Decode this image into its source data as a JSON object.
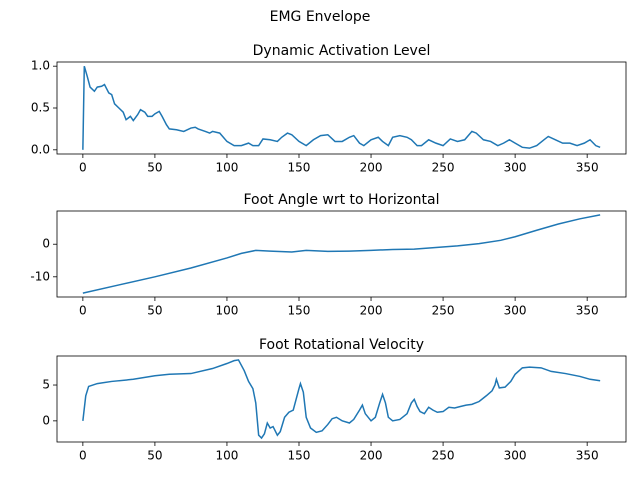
{
  "suptitle": "EMG Envelope",
  "chart_data": [
    {
      "type": "line",
      "title": "Dynamic Activation Level",
      "color": "#1f77b4",
      "x": [
        0,
        1,
        3,
        5,
        8,
        10,
        13,
        15,
        18,
        20,
        22,
        25,
        28,
        30,
        33,
        35,
        38,
        40,
        43,
        45,
        48,
        50,
        53,
        55,
        58,
        60,
        65,
        70,
        75,
        78,
        80,
        85,
        88,
        90,
        95,
        100,
        105,
        110,
        115,
        118,
        122,
        125,
        130,
        135,
        138,
        142,
        145,
        150,
        155,
        160,
        165,
        170,
        175,
        180,
        185,
        188,
        192,
        195,
        200,
        205,
        208,
        212,
        215,
        220,
        225,
        228,
        232,
        235,
        240,
        245,
        250,
        255,
        260,
        265,
        270,
        273,
        278,
        283,
        288,
        292,
        296,
        300,
        305,
        310,
        315,
        320,
        323,
        328,
        333,
        338,
        343,
        348,
        352,
        356,
        359
      ],
      "values": [
        0,
        1.0,
        0.88,
        0.75,
        0.7,
        0.75,
        0.76,
        0.78,
        0.68,
        0.66,
        0.55,
        0.5,
        0.45,
        0.36,
        0.4,
        0.35,
        0.42,
        0.48,
        0.45,
        0.4,
        0.4,
        0.43,
        0.46,
        0.4,
        0.3,
        0.25,
        0.24,
        0.22,
        0.26,
        0.27,
        0.25,
        0.22,
        0.2,
        0.22,
        0.2,
        0.1,
        0.05,
        0.05,
        0.08,
        0.05,
        0.05,
        0.13,
        0.12,
        0.1,
        0.15,
        0.2,
        0.18,
        0.1,
        0.05,
        0.12,
        0.17,
        0.18,
        0.1,
        0.1,
        0.15,
        0.17,
        0.08,
        0.05,
        0.12,
        0.15,
        0.1,
        0.05,
        0.15,
        0.17,
        0.15,
        0.12,
        0.05,
        0.05,
        0.12,
        0.08,
        0.05,
        0.13,
        0.1,
        0.12,
        0.22,
        0.2,
        0.12,
        0.1,
        0.05,
        0.08,
        0.12,
        0.08,
        0.03,
        0.02,
        0.05,
        0.12,
        0.16,
        0.12,
        0.08,
        0.08,
        0.05,
        0.08,
        0.12,
        0.05,
        0.03
      ],
      "xlim": [
        -17.95,
        376.95
      ],
      "xticks": [
        0,
        50,
        100,
        150,
        200,
        250,
        300,
        350
      ],
      "ylim": [
        -0.05,
        1.05
      ],
      "yticks": [
        {
          "value": 0,
          "label": "0.0"
        },
        {
          "value": 0.5,
          "label": "0.5"
        },
        {
          "value": 1,
          "label": "1.0"
        }
      ]
    },
    {
      "type": "line",
      "title": "Foot Angle wrt to Horizontal",
      "color": "#1f77b4",
      "x": [
        0,
        25,
        50,
        75,
        100,
        110,
        120,
        130,
        145,
        155,
        170,
        185,
        200,
        215,
        230,
        245,
        260,
        275,
        290,
        300,
        315,
        330,
        345,
        359
      ],
      "values": [
        -15,
        -12.5,
        -10,
        -7.3,
        -4.2,
        -2.8,
        -1.9,
        -2.1,
        -2.4,
        -1.9,
        -2.2,
        -2.1,
        -1.9,
        -1.6,
        -1.5,
        -1.0,
        -0.5,
        0.2,
        1.2,
        2.3,
        4.3,
        6.2,
        7.8,
        9.0
      ],
      "xlim": [
        -17.95,
        376.95
      ],
      "xticks": [
        0,
        50,
        100,
        150,
        200,
        250,
        300,
        350
      ],
      "ylim": [
        -16.2,
        10.2
      ],
      "yticks": [
        -10,
        0
      ]
    },
    {
      "type": "line",
      "title": "Foot Rotational Velocity",
      "color": "#1f77b4",
      "x": [
        0,
        2,
        4,
        10,
        20,
        35,
        50,
        60,
        75,
        90,
        100,
        105,
        108,
        112,
        115,
        118,
        120,
        122,
        124,
        126,
        128,
        130,
        132,
        135,
        137,
        140,
        143,
        146,
        148,
        150,
        151,
        153,
        155,
        158,
        162,
        166,
        170,
        173,
        176,
        180,
        185,
        188,
        192,
        194,
        196,
        200,
        203,
        206,
        208,
        210,
        212,
        215,
        220,
        225,
        228,
        230,
        232,
        234,
        237,
        240,
        243,
        246,
        250,
        254,
        258,
        262,
        266,
        270,
        275,
        280,
        284,
        286,
        287,
        289,
        293,
        297,
        300,
        305,
        310,
        318,
        325,
        335,
        345,
        352,
        359
      ],
      "values": [
        0,
        3.5,
        4.8,
        5.2,
        5.5,
        5.8,
        6.3,
        6.5,
        6.6,
        7.3,
        8.0,
        8.4,
        8.5,
        7.0,
        5.5,
        4.5,
        2.5,
        -2.0,
        -2.4,
        -1.8,
        -0.3,
        -1.0,
        -0.8,
        -2.0,
        -1.5,
        0.5,
        1.2,
        1.5,
        3.0,
        4.5,
        5.2,
        4.0,
        0.5,
        -1.0,
        -1.6,
        -1.4,
        -0.5,
        0.3,
        0.5,
        0.0,
        -0.3,
        0.2,
        1.5,
        2.2,
        1.0,
        0.0,
        0.5,
        2.5,
        3.7,
        2.5,
        0.5,
        0.0,
        0.2,
        1.0,
        2.5,
        3.0,
        2.0,
        1.3,
        1.0,
        1.9,
        1.5,
        1.2,
        1.3,
        1.9,
        1.8,
        2.0,
        2.2,
        2.3,
        2.7,
        3.5,
        4.2,
        5.0,
        5.8,
        4.6,
        4.7,
        5.5,
        6.5,
        7.4,
        7.5,
        7.4,
        6.9,
        6.6,
        6.2,
        5.8,
        5.6
      ],
      "xlim": [
        -17.95,
        376.95
      ],
      "xticks": [
        0,
        50,
        100,
        150,
        200,
        250,
        300,
        350
      ],
      "ylim": [
        -2.95,
        9.05
      ],
      "yticks": [
        0,
        5
      ]
    }
  ]
}
